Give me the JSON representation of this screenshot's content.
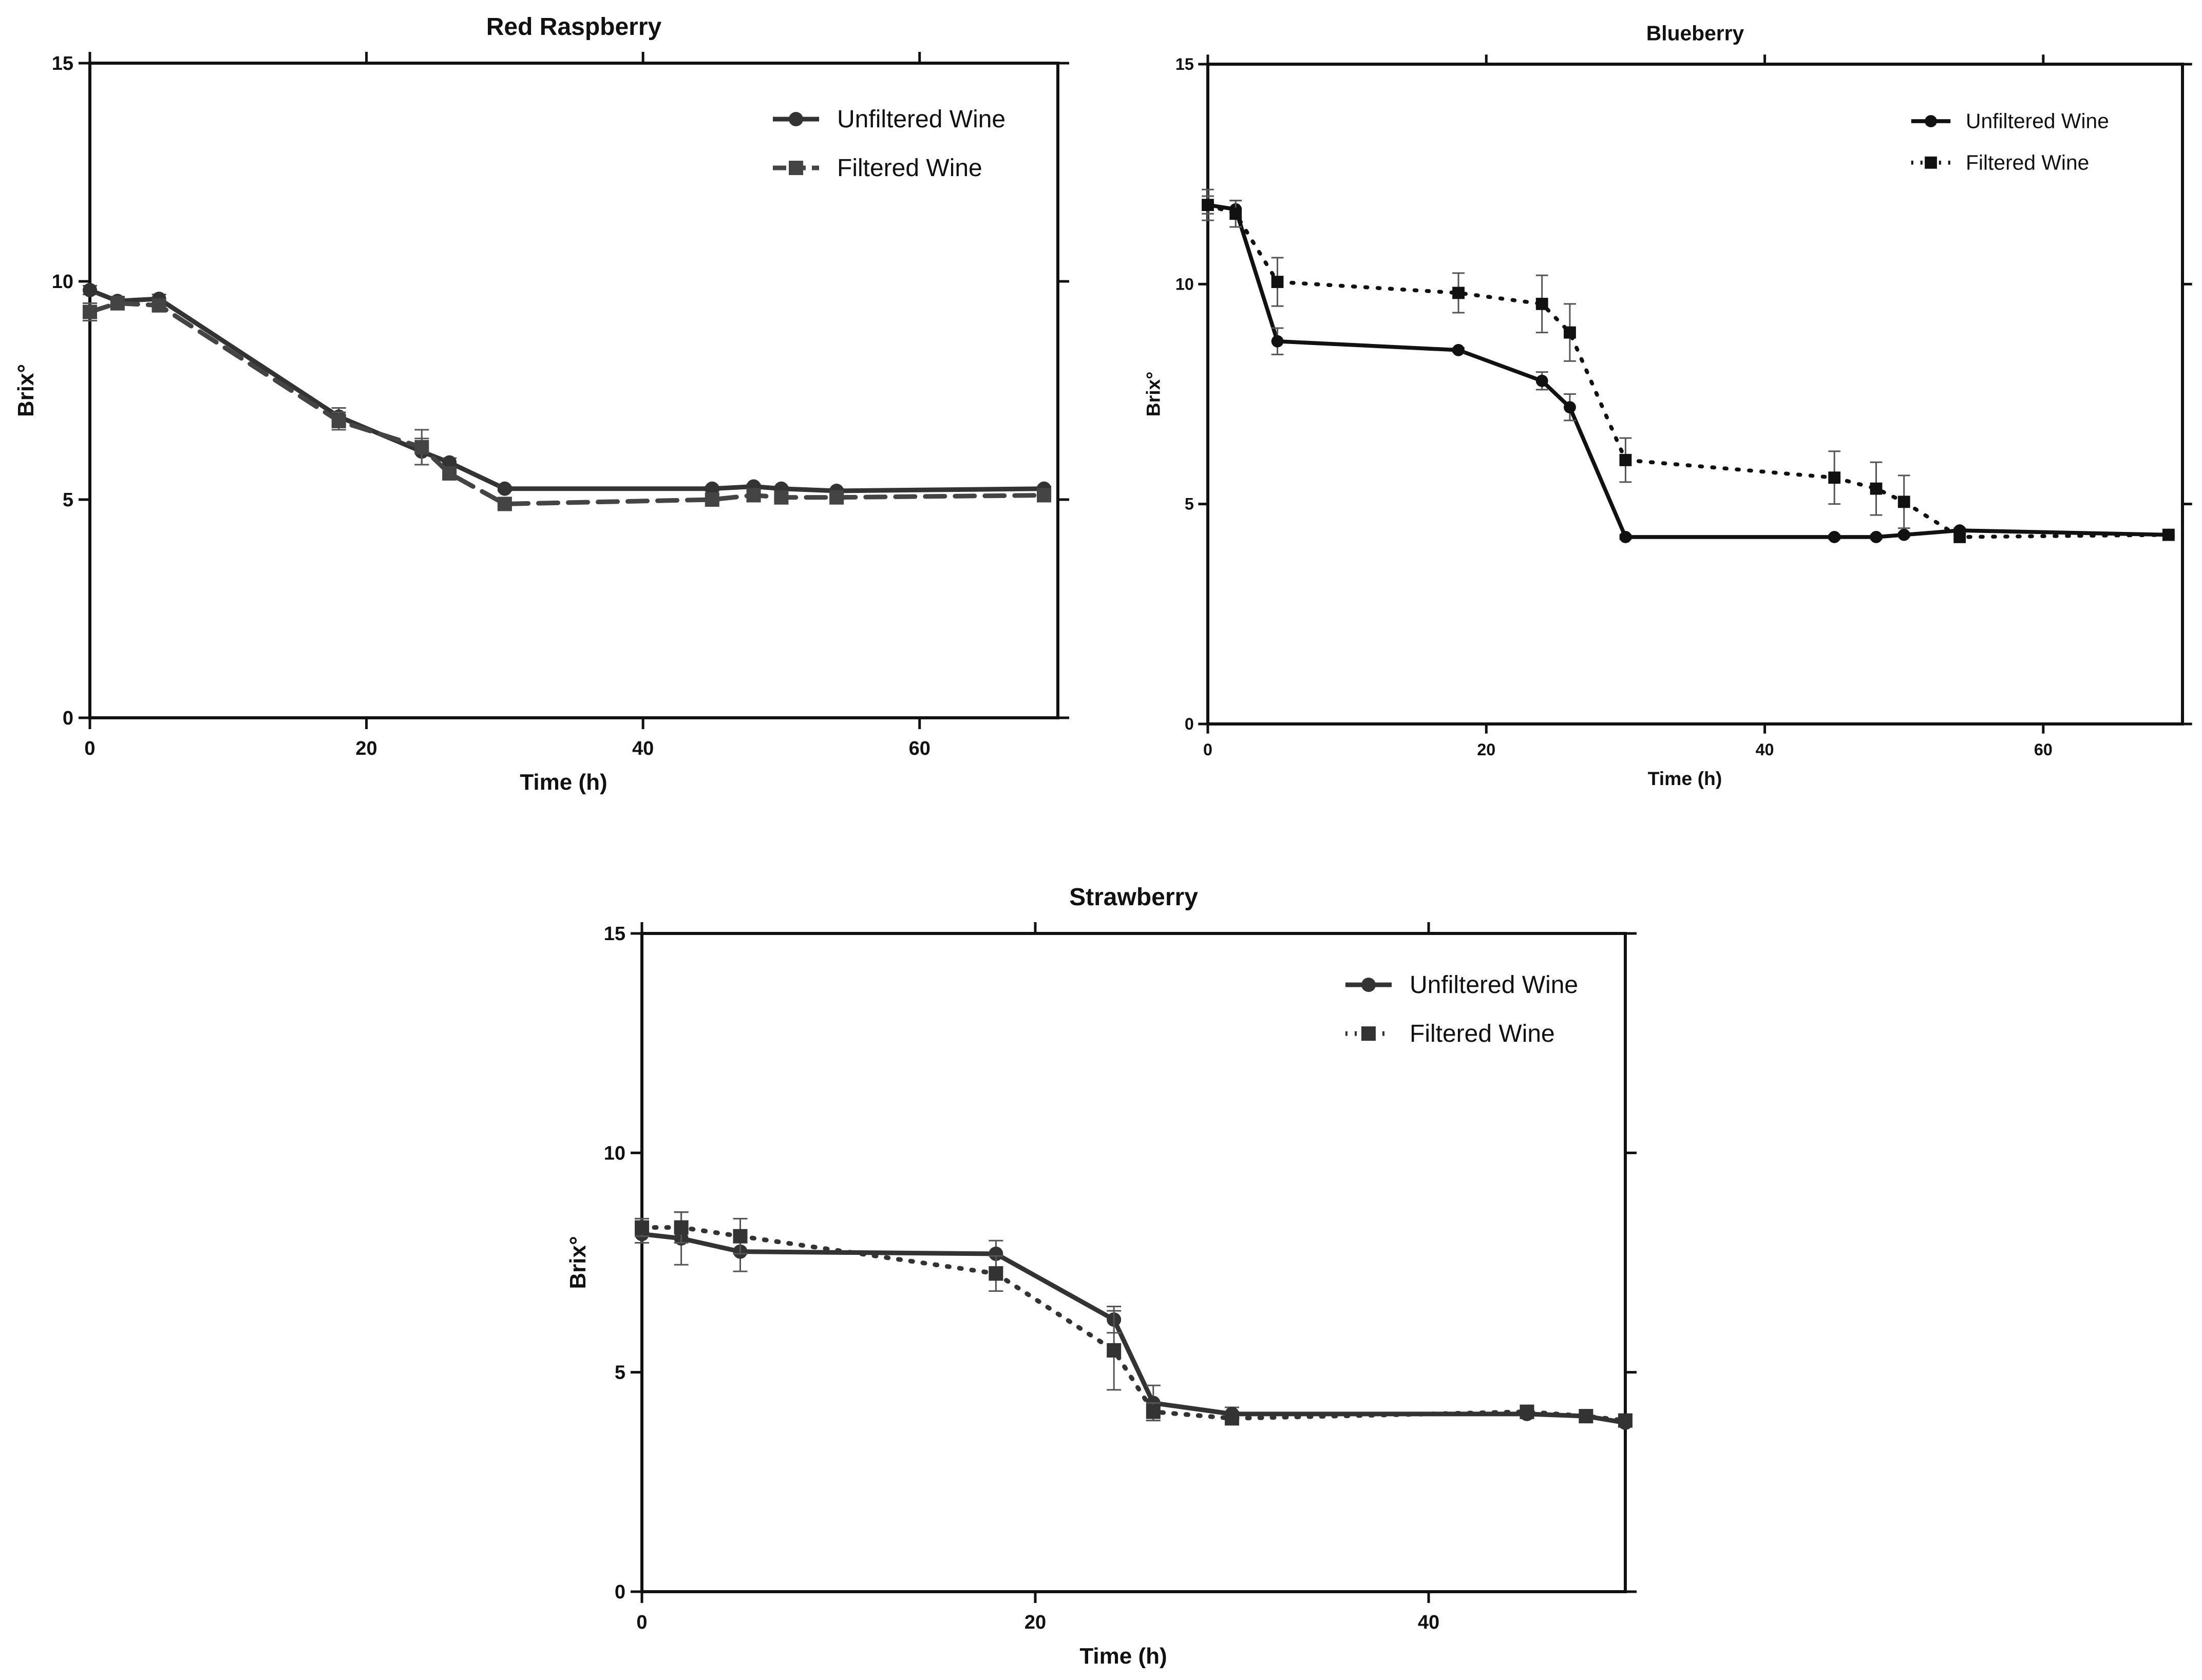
{
  "chart_data": [
    {
      "type": "line",
      "title": "Red Raspberry",
      "xlabel": "Time (h)",
      "ylabel": "Brix°",
      "xlim": [
        0,
        70
      ],
      "ylim": [
        0,
        15
      ],
      "xticks": [
        0,
        20,
        40,
        60
      ],
      "yticks": [
        0,
        5,
        10,
        15
      ],
      "grid": false,
      "legend_position": "top-right",
      "series": [
        {
          "name": "Unfiltered Wine",
          "style": "solid",
          "marker": "circle",
          "color": "#333333",
          "points": [
            {
              "x": 0,
              "y": 9.8,
              "err": 0.1
            },
            {
              "x": 2,
              "y": 9.55,
              "err": 0.1
            },
            {
              "x": 5,
              "y": 9.6,
              "err": 0.1
            },
            {
              "x": 18,
              "y": 6.9,
              "err": 0.2
            },
            {
              "x": 24,
              "y": 6.1,
              "err": 0.3
            },
            {
              "x": 26,
              "y": 5.85,
              "err": 0.1
            },
            {
              "x": 30,
              "y": 5.25,
              "err": 0.05
            },
            {
              "x": 45,
              "y": 5.25,
              "err": 0.05
            },
            {
              "x": 48,
              "y": 5.3,
              "err": 0.05
            },
            {
              "x": 50,
              "y": 5.25,
              "err": 0.05
            },
            {
              "x": 54,
              "y": 5.2,
              "err": 0.05
            },
            {
              "x": 69,
              "y": 5.25,
              "err": 0.05
            }
          ]
        },
        {
          "name": "Filtered Wine",
          "style": "dashed",
          "marker": "square",
          "color": "#444444",
          "points": [
            {
              "x": 0,
              "y": 9.3,
              "err": 0.2
            },
            {
              "x": 2,
              "y": 9.5,
              "err": 0.15
            },
            {
              "x": 5,
              "y": 9.45,
              "err": 0.1
            },
            {
              "x": 18,
              "y": 6.8,
              "err": 0.2
            },
            {
              "x": 24,
              "y": 6.2,
              "err": 0.4
            },
            {
              "x": 26,
              "y": 5.6,
              "err": 0.1
            },
            {
              "x": 30,
              "y": 4.9,
              "err": 0.05
            },
            {
              "x": 45,
              "y": 5.0,
              "err": 0.05
            },
            {
              "x": 48,
              "y": 5.1,
              "err": 0.05
            },
            {
              "x": 50,
              "y": 5.05,
              "err": 0.05
            },
            {
              "x": 54,
              "y": 5.05,
              "err": 0.05
            },
            {
              "x": 69,
              "y": 5.1,
              "err": 0.05
            }
          ]
        }
      ]
    },
    {
      "type": "line",
      "title": "Blueberry",
      "xlabel": "Time (h)",
      "ylabel": "Brix°",
      "xlim": [
        0,
        70
      ],
      "ylim": [
        0,
        15
      ],
      "xticks": [
        0,
        20,
        40,
        60
      ],
      "yticks": [
        0,
        5,
        10,
        15
      ],
      "grid": false,
      "legend_position": "top-right",
      "series": [
        {
          "name": "Unfiltered Wine",
          "style": "solid",
          "marker": "circle",
          "color": "#111111",
          "points": [
            {
              "x": 0,
              "y": 11.8,
              "err": 0.2
            },
            {
              "x": 2,
              "y": 11.7,
              "err": 0.2
            },
            {
              "x": 5,
              "y": 8.7,
              "err": 0.3
            },
            {
              "x": 18,
              "y": 8.5,
              "err": 0.05
            },
            {
              "x": 24,
              "y": 7.8,
              "err": 0.2
            },
            {
              "x": 26,
              "y": 7.2,
              "err": 0.3
            },
            {
              "x": 30,
              "y": 4.25,
              "err": 0.05
            },
            {
              "x": 45,
              "y": 4.25,
              "err": 0.05
            },
            {
              "x": 48,
              "y": 4.25,
              "err": 0.05
            },
            {
              "x": 50,
              "y": 4.3,
              "err": 0.05
            },
            {
              "x": 54,
              "y": 4.4,
              "err": 0.05
            },
            {
              "x": 69,
              "y": 4.3,
              "err": 0.05
            }
          ]
        },
        {
          "name": "Filtered Wine",
          "style": "dotted",
          "marker": "square",
          "color": "#111111",
          "points": [
            {
              "x": 0,
              "y": 11.8,
              "err": 0.35
            },
            {
              "x": 2,
              "y": 11.6,
              "err": 0.3
            },
            {
              "x": 5,
              "y": 10.05,
              "err": 0.55
            },
            {
              "x": 18,
              "y": 9.8,
              "err": 0.45
            },
            {
              "x": 24,
              "y": 9.55,
              "err": 0.65
            },
            {
              "x": 26,
              "y": 8.9,
              "err": 0.65
            },
            {
              "x": 30,
              "y": 6.0,
              "err": 0.5
            },
            {
              "x": 45,
              "y": 5.6,
              "err": 0.6
            },
            {
              "x": 48,
              "y": 5.35,
              "err": 0.6
            },
            {
              "x": 50,
              "y": 5.05,
              "err": 0.6
            },
            {
              "x": 54,
              "y": 4.25,
              "err": 0.05
            },
            {
              "x": 69,
              "y": 4.3,
              "err": 0.05
            }
          ]
        }
      ]
    },
    {
      "type": "line",
      "title": "Strawberry",
      "xlabel": "Time (h)",
      "ylabel": "Brix°",
      "xlim": [
        0,
        50
      ],
      "ylim": [
        0,
        15
      ],
      "xticks": [
        0,
        20,
        40
      ],
      "yticks": [
        0,
        5,
        10,
        15
      ],
      "grid": false,
      "legend_position": "top-right",
      "series": [
        {
          "name": "Unfiltered Wine",
          "style": "solid",
          "marker": "circle",
          "color": "#333333",
          "points": [
            {
              "x": 0,
              "y": 8.15,
              "err": 0.2
            },
            {
              "x": 2,
              "y": 8.05,
              "err": 0.6
            },
            {
              "x": 5,
              "y": 7.75,
              "err": 0.45
            },
            {
              "x": 18,
              "y": 7.7,
              "err": 0.3
            },
            {
              "x": 24,
              "y": 6.2,
              "err": 0.3
            },
            {
              "x": 26,
              "y": 4.3,
              "err": 0.4
            },
            {
              "x": 30,
              "y": 4.05,
              "err": 0.15
            },
            {
              "x": 45,
              "y": 4.05,
              "err": 0.1
            },
            {
              "x": 48,
              "y": 4.0,
              "err": 0.05
            },
            {
              "x": 50,
              "y": 3.85,
              "err": 0.05
            }
          ]
        },
        {
          "name": "Filtered Wine",
          "style": "dotted",
          "marker": "square",
          "color": "#333333",
          "points": [
            {
              "x": 0,
              "y": 8.3,
              "err": 0.2
            },
            {
              "x": 2,
              "y": 8.3,
              "err": 0.35
            },
            {
              "x": 5,
              "y": 8.1,
              "err": 0.4
            },
            {
              "x": 18,
              "y": 7.25,
              "err": 0.4
            },
            {
              "x": 24,
              "y": 5.5,
              "err": 0.9
            },
            {
              "x": 26,
              "y": 4.1,
              "err": 0.2
            },
            {
              "x": 30,
              "y": 3.95,
              "err": 0.1
            },
            {
              "x": 45,
              "y": 4.1,
              "err": 0.05
            },
            {
              "x": 48,
              "y": 4.0,
              "err": 0.05
            },
            {
              "x": 50,
              "y": 3.9,
              "err": 0.05
            }
          ]
        }
      ]
    }
  ]
}
